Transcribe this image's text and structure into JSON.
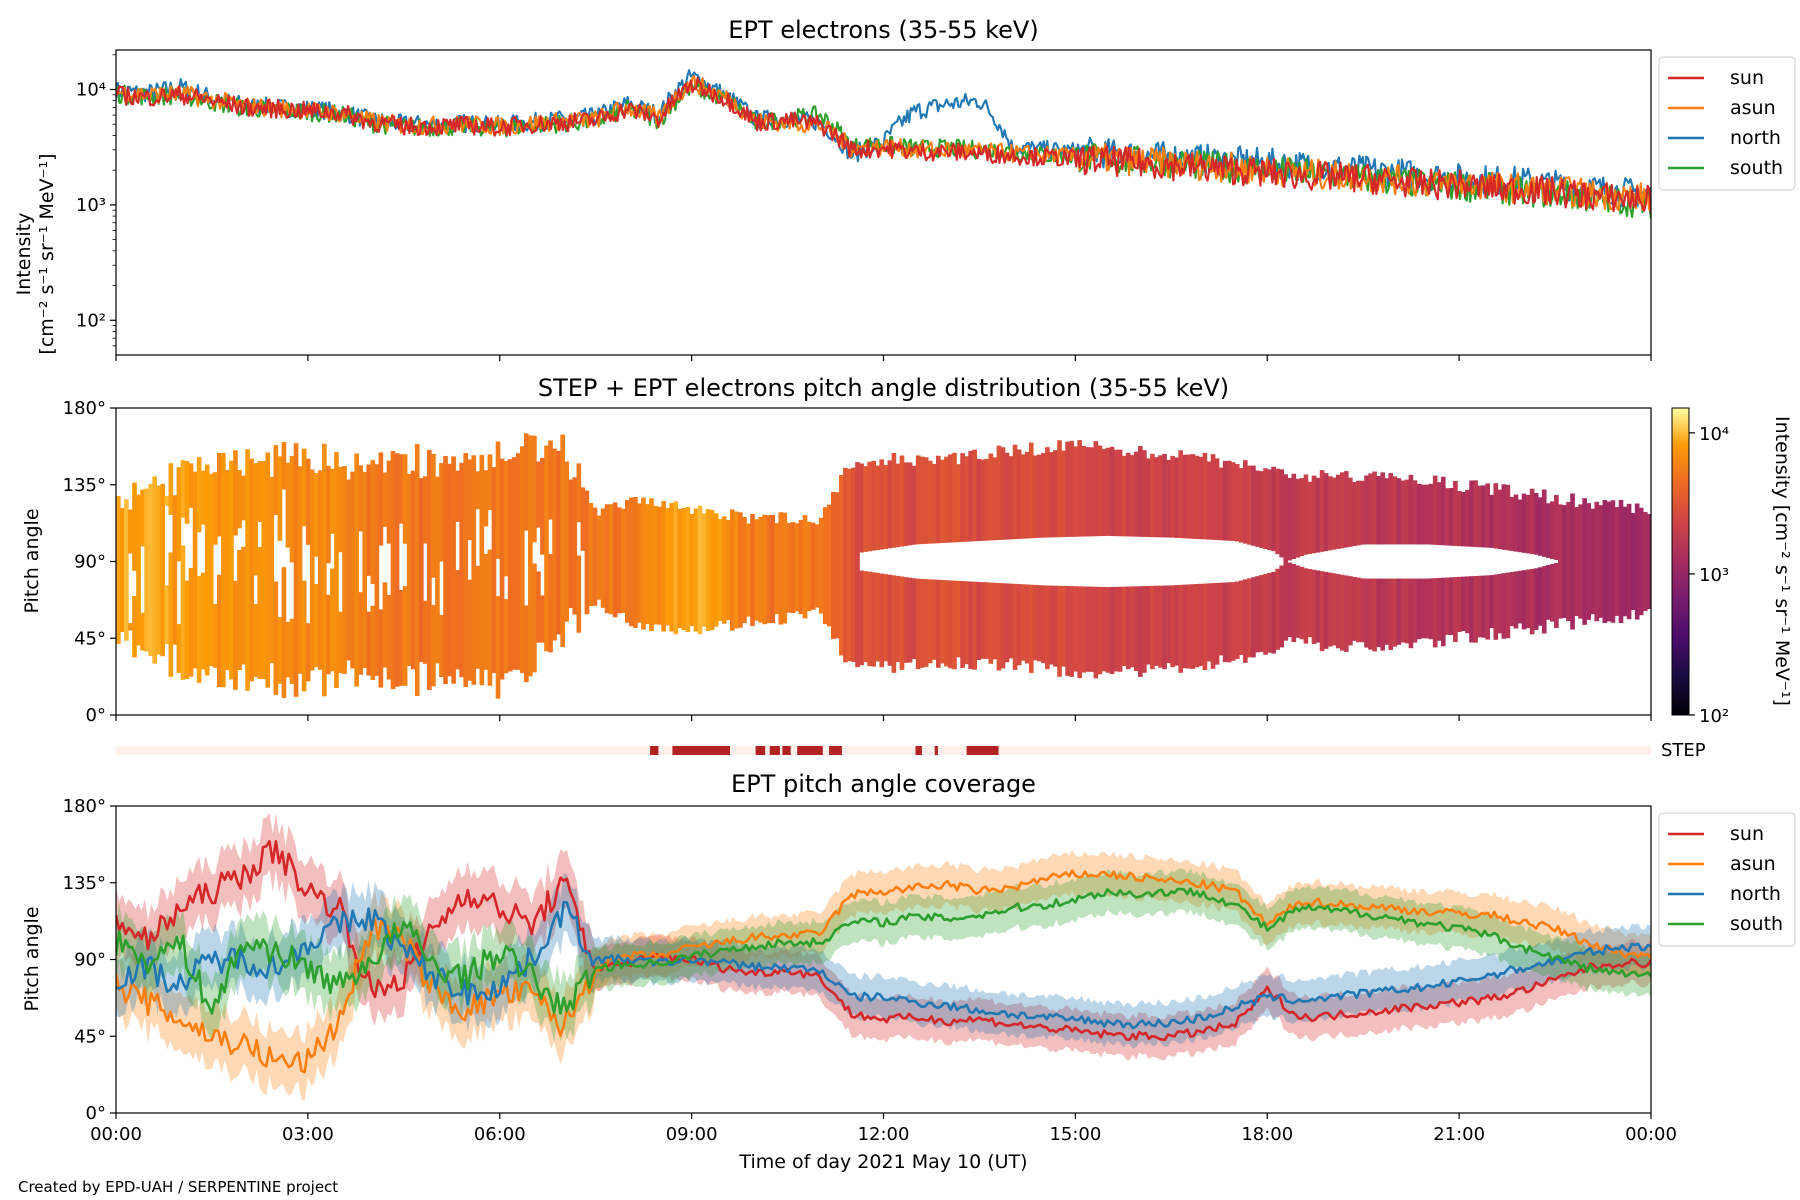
{
  "colors": {
    "sun": "#d62728",
    "asun": "#ff7f0e",
    "north": "#1f77b4",
    "south": "#2ca02c",
    "step_bar": "#b22222",
    "step_bg": "#fdf0ea"
  },
  "x_axis_label": "Time of day 2021 May 10 (UT)",
  "credit": "Created by EPD-UAH / SERPENTINE project",
  "chart_data": [
    {
      "type": "line",
      "title": "EPT electrons (35-55 keV)",
      "ylabel_line1": "Intensity",
      "ylabel_line2": "[cm⁻² s⁻¹ sr⁻¹ MeV⁻¹]",
      "yscale": "log",
      "ylim": [
        50,
        22000
      ],
      "yticks": [
        {
          "value": 100,
          "label": "10²"
        },
        {
          "value": 1000,
          "label": "10³"
        },
        {
          "value": 10000,
          "label": "10⁴"
        }
      ],
      "xlim_hours": [
        0,
        24
      ],
      "legend": [
        "sun",
        "asun",
        "north",
        "south"
      ],
      "legend_position": "outside-right",
      "x_hours": [
        0,
        0.5,
        1,
        1.5,
        2,
        2.5,
        3,
        3.5,
        4,
        4.5,
        5,
        5.5,
        6,
        6.5,
        7,
        7.5,
        8,
        8.5,
        9,
        9.5,
        10,
        10.5,
        11,
        11.5,
        12,
        12.5,
        13,
        13.5,
        14,
        14.5,
        15,
        15.5,
        16,
        16.5,
        17,
        17.5,
        18,
        18.5,
        19,
        19.5,
        20,
        20.5,
        21,
        21.5,
        22,
        22.5,
        23,
        23.5,
        24
      ],
      "series": [
        {
          "name": "sun",
          "values": [
            9000,
            8500,
            9000,
            8000,
            7000,
            6800,
            6500,
            6300,
            5200,
            4800,
            4800,
            4900,
            4700,
            5000,
            5200,
            5400,
            6800,
            5500,
            11000,
            8500,
            5200,
            5400,
            5000,
            3000,
            3100,
            2900,
            2900,
            2800,
            2700,
            2600,
            2500,
            2400,
            2300,
            2200,
            2100,
            2000,
            1900,
            1800,
            1750,
            1700,
            1600,
            1500,
            1500,
            1400,
            1350,
            1300,
            1200,
            1150,
            1100
          ]
        },
        {
          "name": "asun",
          "values": [
            9500,
            9000,
            9200,
            8200,
            7200,
            6900,
            6600,
            6200,
            5300,
            4900,
            4900,
            5000,
            4800,
            5100,
            5300,
            5500,
            7000,
            5600,
            11500,
            8700,
            5300,
            5200,
            4900,
            3100,
            3200,
            3000,
            3000,
            2900,
            2800,
            2700,
            2600,
            2500,
            2400,
            2300,
            2200,
            2100,
            2000,
            1900,
            1800,
            1750,
            1650,
            1550,
            1550,
            1450,
            1400,
            1350,
            1250,
            1200,
            1150
          ]
        },
        {
          "name": "north",
          "values": [
            9800,
            9300,
            10500,
            8500,
            7300,
            7000,
            6800,
            6400,
            5400,
            5000,
            5000,
            5100,
            4900,
            5200,
            5500,
            5800,
            7500,
            6000,
            13000,
            9000,
            5500,
            5600,
            5200,
            2700,
            3500,
            6500,
            7500,
            8000,
            3200,
            3000,
            2900,
            2800,
            2700,
            2600,
            2500,
            2400,
            2300,
            2200,
            2100,
            2000,
            1900,
            1800,
            1700,
            1650,
            1600,
            1500,
            1400,
            1300,
            1250
          ]
        },
        {
          "name": "south",
          "values": [
            9200,
            8700,
            8900,
            7800,
            6900,
            6700,
            6400,
            6100,
            5100,
            4700,
            4700,
            4800,
            4600,
            4900,
            5100,
            5300,
            6700,
            5400,
            10500,
            8300,
            5100,
            5600,
            6000,
            3200,
            3300,
            3100,
            3100,
            3000,
            2900,
            2700,
            2600,
            2500,
            2400,
            2300,
            2200,
            2100,
            2000,
            1900,
            1800,
            1700,
            1600,
            1500,
            1450,
            1400,
            1300,
            1250,
            1150,
            1100,
            1000
          ]
        }
      ]
    },
    {
      "type": "heatmap",
      "title": "STEP + EPT electrons pitch angle distribution (35-55 keV)",
      "ylabel": "Pitch angle",
      "ylim": [
        0,
        180
      ],
      "yticks": [
        "0°",
        "45°",
        "90°",
        "135°",
        "180°"
      ],
      "xlim_hours": [
        0,
        24
      ],
      "colorbar": {
        "label": "Intensity [cm⁻² s⁻¹ sr⁻¹ MeV⁻¹]",
        "range": [
          100,
          15000
        ],
        "scale": "log",
        "ticks": [
          {
            "value": 100,
            "label": "10²"
          },
          {
            "value": 1000,
            "label": "10³"
          },
          {
            "value": 10000,
            "label": "10⁴"
          }
        ]
      },
      "envelope_hours": [
        0,
        1,
        2,
        3,
        4,
        5,
        6,
        7,
        7.5,
        8,
        9,
        10,
        11,
        11.5,
        12,
        13,
        14,
        15,
        16,
        17,
        18,
        18.3,
        19,
        20,
        21,
        22,
        23,
        24
      ],
      "envelope_min_deg": [
        45,
        30,
        20,
        20,
        25,
        20,
        15,
        50,
        65,
        55,
        50,
        55,
        60,
        28,
        28,
        30,
        30,
        25,
        25,
        30,
        35,
        45,
        40,
        40,
        45,
        50,
        55,
        60
      ],
      "envelope_max_deg": [
        125,
        140,
        150,
        150,
        145,
        150,
        155,
        155,
        120,
        125,
        120,
        115,
        115,
        148,
        150,
        150,
        155,
        158,
        155,
        150,
        145,
        140,
        140,
        140,
        135,
        130,
        125,
        120
      ],
      "gap_hours": [
        11.6,
        12.5,
        13.5,
        14.5,
        15.5,
        16.5,
        17.5,
        18.1,
        18.3,
        18.6,
        19.5,
        20.5,
        21.5,
        22.2,
        22.6
      ],
      "gap_min_deg": [
        85,
        80,
        78,
        76,
        75,
        76,
        78,
        84,
        90,
        86,
        80,
        80,
        82,
        86,
        90
      ],
      "gap_max_deg": [
        95,
        100,
        102,
        104,
        105,
        104,
        102,
        96,
        90,
        94,
        100,
        100,
        98,
        94,
        90
      ],
      "intensity_hours": [
        0,
        1,
        2,
        3,
        4,
        5,
        6,
        7,
        8,
        9,
        10,
        11,
        11.5,
        12,
        13,
        14,
        15,
        16,
        17,
        18,
        19,
        20,
        21,
        22,
        23,
        24
      ],
      "intensity_values": [
        9000,
        8000,
        7000,
        6500,
        5500,
        5000,
        5000,
        5200,
        5500,
        9000,
        5200,
        5000,
        2900,
        2900,
        2800,
        2700,
        2500,
        2300,
        2200,
        2000,
        1800,
        1700,
        1500,
        1400,
        1250,
        1100
      ]
    },
    {
      "type": "bar",
      "label": "STEP",
      "xlim_hours": [
        0,
        24
      ],
      "intervals_hours": [
        [
          8.35,
          8.48
        ],
        [
          8.7,
          9.6
        ],
        [
          10.0,
          10.15
        ],
        [
          10.22,
          10.38
        ],
        [
          10.42,
          10.55
        ],
        [
          10.65,
          11.05
        ],
        [
          11.15,
          11.35
        ],
        [
          12.5,
          12.6
        ],
        [
          12.8,
          12.85
        ],
        [
          13.3,
          13.8
        ]
      ]
    },
    {
      "type": "line",
      "title": "EPT pitch angle coverage",
      "ylabel": "Pitch angle",
      "ylim": [
        0,
        180
      ],
      "yticks": [
        "0°",
        "45°",
        "90°",
        "135°",
        "180°"
      ],
      "xlim_hours": [
        0,
        24
      ],
      "xticks": [
        "00:00",
        "03:00",
        "06:00",
        "09:00",
        "12:00",
        "15:00",
        "18:00",
        "21:00",
        "00:00"
      ],
      "legend": [
        "sun",
        "asun",
        "north",
        "south"
      ],
      "legend_position": "outside-right",
      "band_halfwidth_deg": 12,
      "x_hours": [
        0,
        0.5,
        1,
        1.5,
        2,
        2.5,
        3,
        3.5,
        4,
        4.5,
        5,
        5.5,
        6,
        6.5,
        7,
        7.5,
        8,
        8.5,
        9,
        9.5,
        10,
        10.5,
        11,
        11.5,
        12,
        12.5,
        13,
        13.5,
        14,
        14.5,
        15,
        15.5,
        16,
        16.5,
        17,
        17.5,
        18,
        18.5,
        19,
        19.5,
        20,
        20.5,
        21,
        21.5,
        22,
        22.5,
        23,
        23.5,
        24
      ],
      "series": [
        {
          "name": "sun",
          "values": [
            115,
            100,
            120,
            130,
            140,
            155,
            130,
            120,
            70,
            80,
            110,
            130,
            120,
            110,
            135,
            85,
            88,
            92,
            90,
            85,
            82,
            84,
            80,
            58,
            55,
            56,
            54,
            55,
            52,
            50,
            48,
            46,
            45,
            45,
            48,
            52,
            72,
            56,
            57,
            59,
            61,
            63,
            65,
            67,
            72,
            78,
            85,
            88,
            88
          ]
        },
        {
          "name": "asun",
          "values": [
            75,
            65,
            55,
            45,
            40,
            30,
            30,
            55,
            110,
            100,
            70,
            60,
            70,
            70,
            50,
            85,
            92,
            92,
            97,
            100,
            103,
            104,
            105,
            128,
            130,
            132,
            134,
            130,
            132,
            137,
            140,
            140,
            138,
            136,
            134,
            130,
            110,
            124,
            123,
            121,
            120,
            118,
            117,
            116,
            112,
            108,
            100,
            94,
            92
          ]
        },
        {
          "name": "north",
          "values": [
            80,
            85,
            75,
            90,
            90,
            85,
            100,
            110,
            115,
            95,
            80,
            70,
            75,
            90,
            120,
            90,
            90,
            88,
            90,
            88,
            86,
            85,
            84,
            68,
            68,
            65,
            63,
            60,
            58,
            56,
            55,
            53,
            52,
            53,
            56,
            62,
            68,
            66,
            68,
            70,
            72,
            74,
            77,
            81,
            85,
            89,
            94,
            97,
            98
          ]
        },
        {
          "name": "south",
          "values": [
            100,
            90,
            100,
            60,
            100,
            95,
            85,
            75,
            90,
            110,
            85,
            80,
            95,
            80,
            60,
            85,
            87,
            88,
            92,
            95,
            98,
            100,
            100,
            112,
            112,
            115,
            114,
            116,
            120,
            122,
            125,
            130,
            128,
            130,
            129,
            122,
            108,
            120,
            119,
            117,
            114,
            111,
            108,
            104,
            97,
            91,
            85,
            82,
            80
          ]
        }
      ]
    }
  ]
}
